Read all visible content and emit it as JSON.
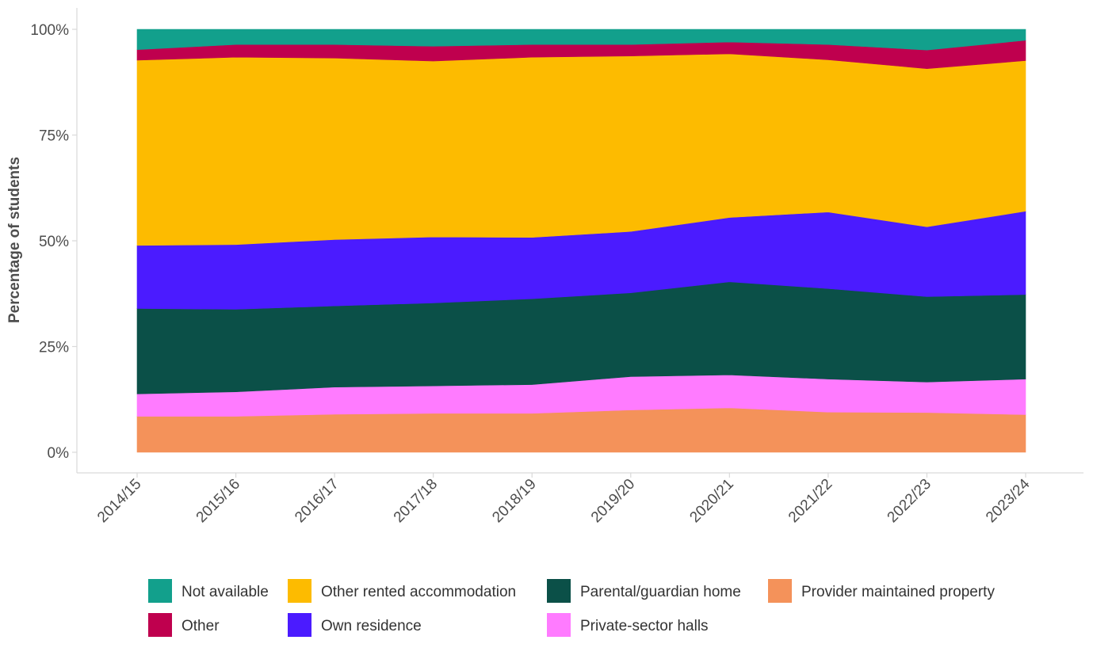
{
  "chart_data": {
    "type": "area",
    "stacked": true,
    "percent": true,
    "title": "",
    "xlabel": "",
    "ylabel": "Percentage of students",
    "ylim": [
      0,
      100
    ],
    "y_ticks": [
      "0%",
      "25%",
      "50%",
      "75%",
      "100%"
    ],
    "y_tick_values": [
      0,
      25,
      50,
      75,
      100
    ],
    "categories": [
      "2014/15",
      "2015/16",
      "2016/17",
      "2017/18",
      "2018/19",
      "2019/20",
      "2020/21",
      "2021/22",
      "2022/23",
      "2023/24"
    ],
    "grid": false,
    "legend_position": "bottom",
    "series": [
      {
        "name": "Provider maintained property",
        "color": "#F4925A",
        "values": [
          8.5,
          8.5,
          9.0,
          9.2,
          9.2,
          10.0,
          10.5,
          9.5,
          9.4,
          8.9
        ]
      },
      {
        "name": "Private-sector halls",
        "color": "#FF7BFF",
        "values": [
          5.3,
          5.8,
          6.4,
          6.5,
          6.8,
          7.9,
          7.8,
          7.8,
          7.2,
          8.4
        ]
      },
      {
        "name": "Parental/guardian home",
        "color": "#0B5048",
        "values": [
          20.2,
          19.5,
          19.2,
          19.6,
          20.3,
          19.8,
          22.0,
          21.4,
          20.2,
          20.0
        ]
      },
      {
        "name": "Own residence",
        "color": "#4B1BFF",
        "values": [
          14.9,
          15.3,
          15.7,
          15.6,
          14.5,
          14.5,
          15.2,
          18.1,
          16.5,
          19.7
        ]
      },
      {
        "name": "Other rented accommodation",
        "color": "#FDBB00",
        "values": [
          43.8,
          44.3,
          42.9,
          41.6,
          42.6,
          41.5,
          38.7,
          36.0,
          37.4,
          35.6
        ]
      },
      {
        "name": "Other",
        "color": "#BF004E",
        "values": [
          2.5,
          3.0,
          3.2,
          3.5,
          3.0,
          2.7,
          2.8,
          3.6,
          4.4,
          4.8
        ]
      },
      {
        "name": "Not available",
        "color": "#12A08C",
        "values": [
          4.8,
          3.6,
          3.6,
          4.0,
          3.6,
          3.6,
          3.0,
          3.6,
          4.9,
          2.6
        ]
      }
    ],
    "legend": {
      "rows": [
        [
          "Not available",
          "Other rented accommodation",
          "Parental/guardian home",
          "Provider maintained property"
        ],
        [
          "Other",
          "Own residence",
          "Private-sector halls"
        ]
      ]
    }
  }
}
